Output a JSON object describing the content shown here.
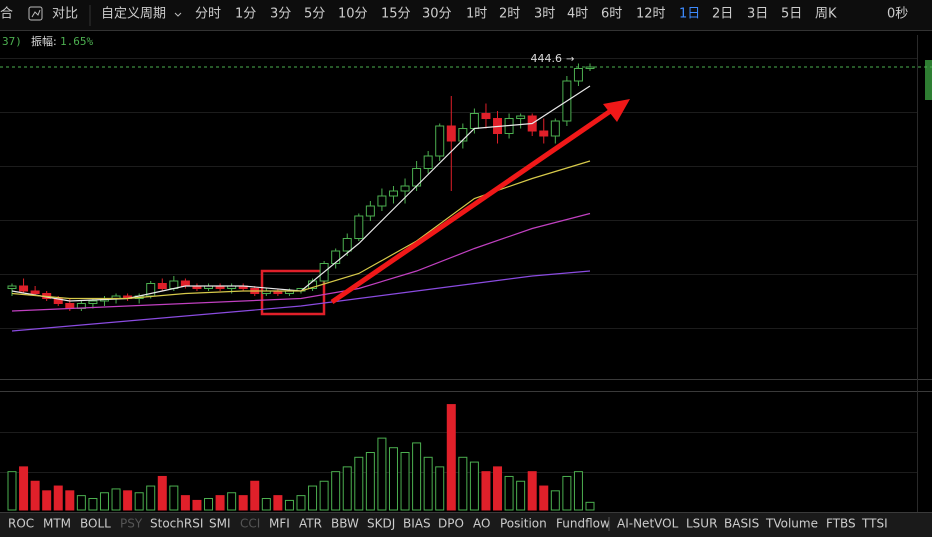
{
  "toolbar": {
    "items": [
      "合",
      "对比",
      "自定义周期",
      "分时",
      "1分",
      "3分",
      "5分",
      "10分",
      "15分",
      "30分",
      "1时",
      "2时",
      "3时",
      "4时",
      "6时",
      "12时",
      "1日",
      "2日",
      "3日",
      "5日",
      "周K"
    ],
    "active": "1日",
    "timer": "0秒"
  },
  "info_bar": {
    "prefix": "37)",
    "label": "振幅:",
    "value": "1.65%"
  },
  "chart_data": {
    "type": "candlestick",
    "candles": [
      [
        356,
        358,
        353,
        357
      ],
      [
        357,
        360,
        354,
        355
      ],
      [
        355,
        357,
        353,
        354
      ],
      [
        354,
        355,
        351,
        352
      ],
      [
        352,
        353,
        349,
        350
      ],
      [
        350,
        352,
        347,
        348
      ],
      [
        348,
        351,
        347,
        350
      ],
      [
        350,
        352,
        348,
        351
      ],
      [
        351,
        353,
        349,
        352
      ],
      [
        352,
        354,
        350,
        353
      ],
      [
        353,
        354,
        351,
        352
      ],
      [
        352,
        354,
        350,
        353
      ],
      [
        353,
        359,
        352,
        358
      ],
      [
        358,
        360,
        355,
        356
      ],
      [
        356,
        361,
        355,
        359
      ],
      [
        359,
        360,
        356,
        357
      ],
      [
        357,
        358,
        355,
        356
      ],
      [
        356,
        358,
        355,
        357
      ],
      [
        357,
        358,
        355,
        356
      ],
      [
        356,
        358,
        354,
        357
      ],
      [
        357,
        358,
        355,
        356
      ],
      [
        356,
        357,
        353,
        354
      ],
      [
        354,
        356,
        353,
        355
      ],
      [
        355,
        356,
        353,
        354
      ],
      [
        354,
        356,
        353,
        355
      ],
      [
        355,
        356,
        354,
        356
      ],
      [
        356,
        360,
        355,
        359
      ],
      [
        359,
        367,
        358,
        366
      ],
      [
        366,
        372,
        364,
        371
      ],
      [
        371,
        378,
        369,
        376
      ],
      [
        376,
        386,
        375,
        385
      ],
      [
        385,
        391,
        383,
        389
      ],
      [
        389,
        396,
        387,
        393
      ],
      [
        393,
        397,
        390,
        395
      ],
      [
        395,
        400,
        390,
        397
      ],
      [
        397,
        407,
        395,
        404
      ],
      [
        404,
        411,
        402,
        409
      ],
      [
        409,
        422,
        407,
        421
      ],
      [
        421,
        433,
        395,
        415
      ],
      [
        415,
        422,
        412,
        420
      ],
      [
        420,
        428,
        418,
        426
      ],
      [
        426,
        430,
        420,
        424
      ],
      [
        424,
        427,
        414,
        418
      ],
      [
        418,
        426,
        416,
        424
      ],
      [
        424,
        426,
        420,
        425
      ],
      [
        425,
        426,
        417,
        419
      ],
      [
        419,
        424,
        414,
        417
      ],
      [
        417,
        424,
        414,
        423
      ],
      [
        423,
        441,
        421,
        439
      ],
      [
        439,
        446,
        437,
        444
      ],
      [
        444,
        446,
        443,
        444.6
      ]
    ],
    "up_color": "#4caf50",
    "down_color": "#e0202a",
    "ylim": [
      319.4,
      457.4
    ],
    "last_price": 444.6,
    "ma": [
      {
        "color": "#e8e8e8",
        "x": [
          0,
          5,
          10,
          15,
          20,
          25,
          30,
          35,
          40,
          45,
          50
        ],
        "values": [
          355,
          351,
          352,
          357,
          357,
          355,
          374,
          397,
          420,
          422,
          437
        ]
      },
      {
        "color": "#d6c94a",
        "x": [
          0,
          5,
          10,
          15,
          20,
          25,
          30,
          35,
          40,
          45,
          50
        ],
        "values": [
          354,
          352,
          352,
          354,
          355,
          355,
          362,
          375,
          392,
          400,
          407
        ]
      },
      {
        "color": "#c040c0",
        "x": [
          0,
          5,
          10,
          15,
          20,
          25,
          30,
          35,
          40,
          45,
          50
        ],
        "values": [
          347,
          348,
          349,
          350,
          351,
          352,
          356,
          363,
          372,
          380,
          386
        ]
      },
      {
        "color": "#8a4be0",
        "x": [
          0,
          5,
          10,
          15,
          20,
          25,
          30,
          35,
          40,
          45,
          50
        ],
        "values": [
          339,
          341,
          343,
          345,
          347,
          349,
          352,
          355,
          358,
          361,
          363
        ]
      }
    ],
    "volume": [
      40,
      45,
      30,
      20,
      25,
      20,
      15,
      12,
      18,
      22,
      20,
      18,
      25,
      35,
      25,
      15,
      10,
      12,
      15,
      18,
      15,
      30,
      12,
      15,
      10,
      15,
      25,
      30,
      40,
      45,
      55,
      60,
      75,
      65,
      60,
      70,
      55,
      45,
      110,
      55,
      50,
      40,
      45,
      35,
      30,
      40,
      25,
      20,
      35,
      40,
      8
    ],
    "vlim": [
      0,
      120
    ]
  },
  "indicators": [
    "ROC",
    "MTM",
    "BOLL",
    "PSY",
    "StochRSI",
    "SMI",
    "CCI",
    "MFI",
    "ATR",
    "BBW",
    "SKDJ",
    "BIAS",
    "DPO",
    "AO",
    "Position",
    "Fundflow",
    "AI-NetVOL",
    "LSUR",
    "BASIS",
    "TVolume",
    "FTBS",
    "TTSI"
  ],
  "disabled_indicators": [
    "PSY",
    "CCI"
  ]
}
